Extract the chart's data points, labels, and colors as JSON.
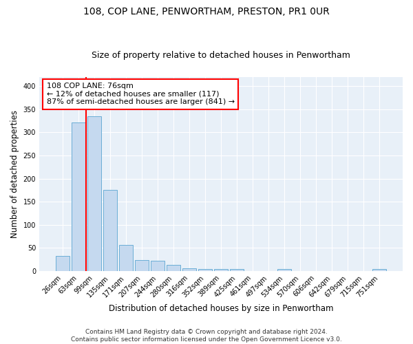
{
  "title": "108, COP LANE, PENWORTHAM, PRESTON, PR1 0UR",
  "subtitle": "Size of property relative to detached houses in Penwortham",
  "xlabel": "Distribution of detached houses by size in Penwortham",
  "ylabel": "Number of detached properties",
  "categories": [
    "26sqm",
    "63sqm",
    "99sqm",
    "135sqm",
    "171sqm",
    "207sqm",
    "244sqm",
    "280sqm",
    "316sqm",
    "352sqm",
    "389sqm",
    "425sqm",
    "461sqm",
    "497sqm",
    "534sqm",
    "570sqm",
    "606sqm",
    "642sqm",
    "679sqm",
    "715sqm",
    "751sqm"
  ],
  "values": [
    33,
    322,
    335,
    176,
    56,
    24,
    22,
    13,
    6,
    5,
    5,
    5,
    0,
    0,
    4,
    0,
    0,
    0,
    0,
    0,
    4
  ],
  "bar_color": "#c5d9ef",
  "bar_edge_color": "#6aaed6",
  "vline_x": 1.5,
  "vline_color": "red",
  "annotation_text": "108 COP LANE: 76sqm\n← 12% of detached houses are smaller (117)\n87% of semi-detached houses are larger (841) →",
  "annotation_box_color": "white",
  "annotation_box_edge_color": "red",
  "ylim": [
    0,
    420
  ],
  "yticks": [
    0,
    50,
    100,
    150,
    200,
    250,
    300,
    350,
    400
  ],
  "plot_bg_color": "#e8f0f8",
  "title_fontsize": 10,
  "subtitle_fontsize": 9,
  "axis_label_fontsize": 8.5,
  "tick_fontsize": 7,
  "annotation_fontsize": 8,
  "footer_fontsize": 6.5,
  "footer_line1": "Contains HM Land Registry data © Crown copyright and database right 2024.",
  "footer_line2": "Contains public sector information licensed under the Open Government Licence v3.0."
}
